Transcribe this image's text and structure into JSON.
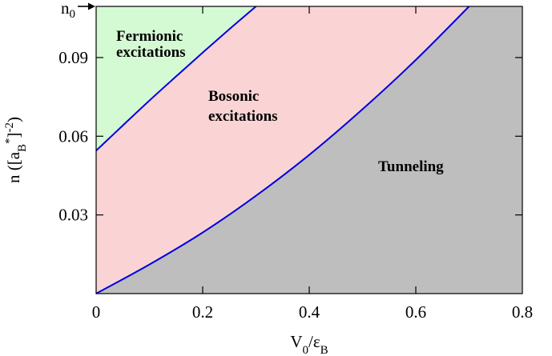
{
  "chart_data": {
    "type": "area",
    "xlabel": "V0/εB",
    "ylabel": "n ([aB*]-2)",
    "xlim": [
      0,
      0.8
    ],
    "ylim": [
      0,
      0.1095
    ],
    "x_ticks": [
      "0",
      "0.2",
      "0.4",
      "0.6",
      "0.8"
    ],
    "x_tick_values": [
      0,
      0.2,
      0.4,
      0.6,
      0.8
    ],
    "y_ticks": [
      "0.03",
      "0.06",
      "0.09"
    ],
    "y_tick_values": [
      0.03,
      0.06,
      0.09
    ],
    "n0_marker": {
      "label": "n0",
      "value": 0.1095
    },
    "boundaries": [
      {
        "name": "",
        "x": [
          0,
          0.05,
          0.1,
          0.15,
          0.2,
          0.25,
          0.3
        ],
        "y": [
          0.0545,
          0.0641,
          0.0736,
          0.0828,
          0.0919,
          0.1008,
          0.1095
        ]
      },
      {
        "name": "",
        "x": [
          0,
          0.1,
          0.2,
          0.3,
          0.4,
          0.5,
          0.6,
          0.7
        ],
        "y": [
          0,
          0.0111,
          0.0233,
          0.0373,
          0.0529,
          0.0703,
          0.0891,
          0.1095
        ]
      }
    ],
    "regions": [
      {
        "label_line1": "Fermionic",
        "label_line2": "excitations",
        "color": "#d4fad4"
      },
      {
        "label_line1": "Bosonic",
        "label_line2": "excitations",
        "color": "#fad4d4"
      },
      {
        "label_line1": "Tunneling",
        "label_line2": "",
        "color": "#bebebe"
      }
    ],
    "line_color": "#0000e0",
    "grid": false
  }
}
